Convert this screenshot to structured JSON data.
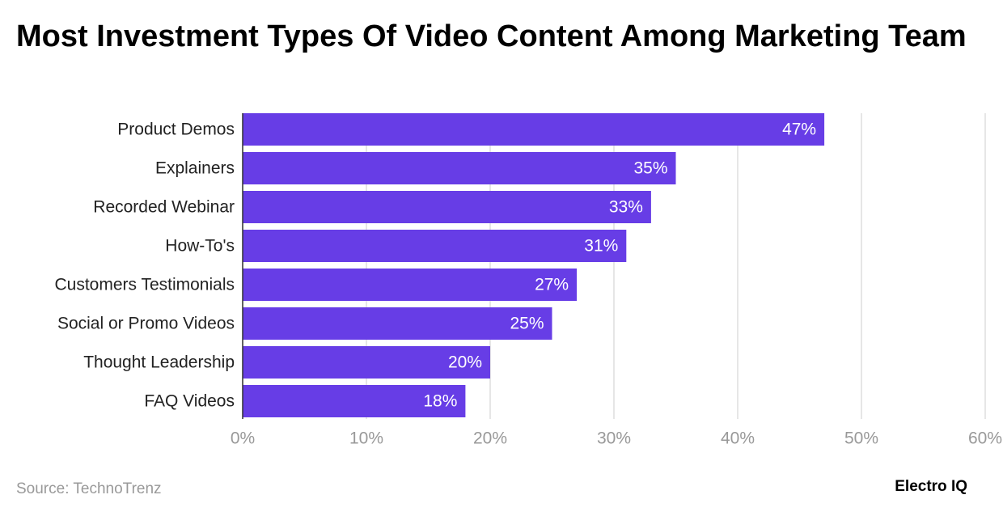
{
  "chart_data": {
    "type": "hbar",
    "title": "Most Investment Types Of Video Content Among Marketing Team",
    "categories": [
      "Product Demos",
      "Explainers",
      "Recorded Webinar",
      "How-To's",
      "Customers Testimonials",
      "Social or Promo Videos",
      "Thought Leadership",
      "FAQ Videos"
    ],
    "values": [
      47,
      35,
      33,
      31,
      27,
      25,
      20,
      18
    ],
    "value_labels": [
      "47%",
      "35%",
      "33%",
      "31%",
      "27%",
      "25%",
      "20%",
      "18%"
    ],
    "color": "#673de6",
    "xlim": [
      0,
      60
    ],
    "xticks": [
      {
        "value": 0,
        "label": "0%"
      },
      {
        "value": 10,
        "label": "10%"
      },
      {
        "value": 20,
        "label": "20%"
      },
      {
        "value": 30,
        "label": "30%"
      },
      {
        "value": 40,
        "label": "40%"
      },
      {
        "value": 50,
        "label": "50%"
      },
      {
        "value": 60,
        "label": "60%"
      }
    ],
    "grid": true,
    "source": "Source: TechnoTrenz",
    "brand": "Electro IQ"
  }
}
